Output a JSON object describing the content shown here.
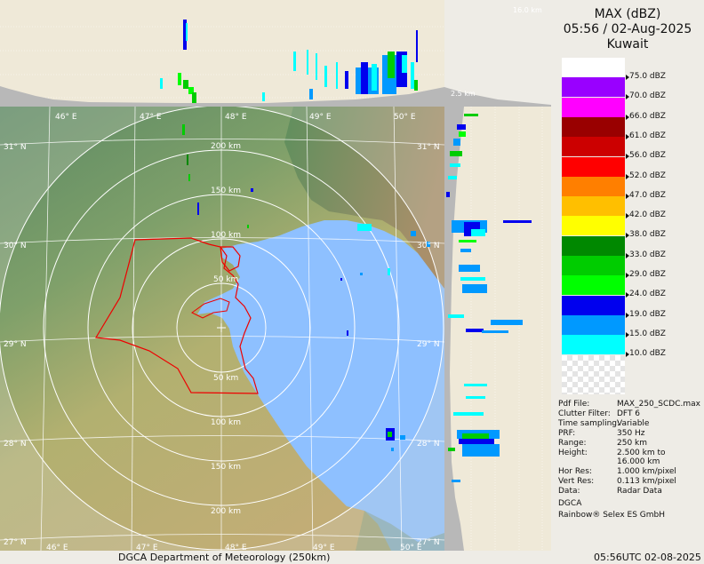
{
  "product": "MAX (dBZ)",
  "datetime": "05:56 / 02-Aug-2025",
  "region": "Kuwait",
  "height_top": "16.0 km",
  "height_bottom": "2.5 km",
  "scale": [
    {
      "label": "75.0 dBZ",
      "color": "#ffffff"
    },
    {
      "label": "70.0 dBZ",
      "color": "#9900ff"
    },
    {
      "label": "66.0 dBZ",
      "color": "#ff00ff"
    },
    {
      "label": "61.0 dBZ",
      "color": "#990000"
    },
    {
      "label": "56.0 dBZ",
      "color": "#cc0000"
    },
    {
      "label": "52.0 dBZ",
      "color": "#ff0000"
    },
    {
      "label": "47.0 dBZ",
      "color": "#ff7f00"
    },
    {
      "label": "42.0 dBZ",
      "color": "#ffbf00"
    },
    {
      "label": "38.0 dBZ",
      "color": "#ffff00"
    },
    {
      "label": "33.0 dBZ",
      "color": "#008800"
    },
    {
      "label": "29.0 dBZ",
      "color": "#00cc00"
    },
    {
      "label": "24.0 dBZ",
      "color": "#00ff00"
    },
    {
      "label": "19.0 dBZ",
      "color": "#0000ee"
    },
    {
      "label": "15.0 dBZ",
      "color": "#0099ff"
    },
    {
      "label": "10.0 dBZ",
      "color": "#00ffff"
    }
  ],
  "metadata": [
    {
      "key": "Pdf File:",
      "value": "MAX_250_SCDC.max"
    },
    {
      "key": "Clutter Filter:",
      "value": "DFT 6"
    },
    {
      "key": "Time sampling:",
      "value": "Variable"
    },
    {
      "key": "PRF:",
      "value": "350 Hz"
    },
    {
      "key": "Range:",
      "value": "250 km"
    },
    {
      "key": "Height:",
      "value": "2.500 km to"
    },
    {
      "key": "",
      "value": "16.000 km"
    },
    {
      "key": "Hor Res:",
      "value": "1.000 km/pixel"
    },
    {
      "key": "Vert Res:",
      "value": "0.113 km/pixel"
    },
    {
      "key": "Data:",
      "value": "Radar Data"
    }
  ],
  "org": "DGCA",
  "vendor": "Rainbow® Selex ES GmbH",
  "footer_left": "DGCA Department of Meteorology (250km)",
  "footer_right": "05:56UTC 02-08-2025",
  "lon_labels": [
    "46° E",
    "47° E",
    "48° E",
    "49° E",
    "50° E"
  ],
  "lat_labels": [
    "31° N",
    "30° N",
    "29° N",
    "28° N",
    "27° N"
  ],
  "ring_labels": [
    "50 km",
    "100 km",
    "150 km",
    "200 km"
  ]
}
